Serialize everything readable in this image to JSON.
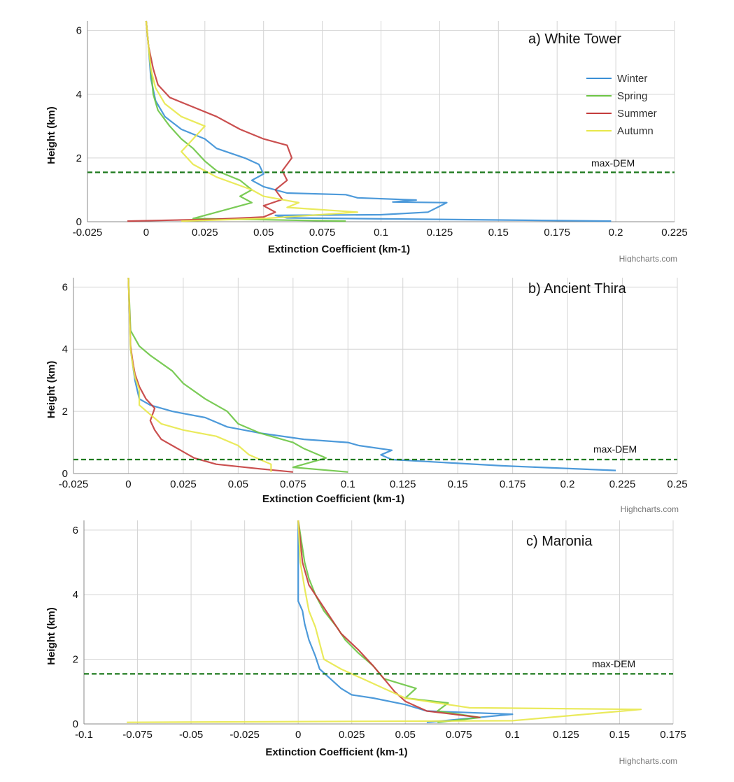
{
  "colors": {
    "Winter": "#3a8fd6",
    "Spring": "#6cc544",
    "Summer": "#c43c3c",
    "Autumn": "#e8e84a",
    "dem": "#1e7a1e",
    "grid": "#d4d4d4"
  },
  "chart_data": [
    {
      "type": "line",
      "title": "a) White Tower",
      "xlabel": "Extinction Coefficient (km-1)",
      "ylabel": "Height (km)",
      "xlim": [
        -0.025,
        0.225
      ],
      "ylim": [
        0,
        6.3
      ],
      "xticks": [
        "-0.025",
        "0",
        "0.025",
        "0.05",
        "0.075",
        "0.1",
        "0.125",
        "0.15",
        "0.175",
        "0.2",
        "0.225"
      ],
      "yticks": [
        "0",
        "2",
        "4",
        "6"
      ],
      "legend": [
        "Winter",
        "Spring",
        "Summer",
        "Autumn"
      ],
      "legend_position": "top-right",
      "reference_line": {
        "label": "max-DEM",
        "y": 1.55
      },
      "credits": "Highcharts.com",
      "series": [
        {
          "name": "Winter",
          "points": [
            [
              0.198,
              0.02
            ],
            [
              0.06,
              0.12
            ],
            [
              0.055,
              0.2
            ],
            [
              0.1,
              0.22
            ],
            [
              0.12,
              0.3
            ],
            [
              0.128,
              0.6
            ],
            [
              0.105,
              0.62
            ],
            [
              0.115,
              0.68
            ],
            [
              0.09,
              0.75
            ],
            [
              0.085,
              0.85
            ],
            [
              0.06,
              0.9
            ],
            [
              0.05,
              1.1
            ],
            [
              0.045,
              1.3
            ],
            [
              0.05,
              1.5
            ],
            [
              0.048,
              1.8
            ],
            [
              0.042,
              2.0
            ],
            [
              0.03,
              2.3
            ],
            [
              0.025,
              2.6
            ],
            [
              0.015,
              2.9
            ],
            [
              0.008,
              3.3
            ],
            [
              0.004,
              3.8
            ],
            [
              0.002,
              4.5
            ],
            [
              0.001,
              5.5
            ],
            [
              0.0,
              6.3
            ]
          ]
        },
        {
          "name": "Spring",
          "points": [
            [
              0.085,
              0.02
            ],
            [
              0.02,
              0.1
            ],
            [
              0.025,
              0.2
            ],
            [
              0.035,
              0.4
            ],
            [
              0.045,
              0.6
            ],
            [
              0.04,
              0.8
            ],
            [
              0.045,
              1.0
            ],
            [
              0.04,
              1.3
            ],
            [
              0.03,
              1.6
            ],
            [
              0.025,
              1.9
            ],
            [
              0.02,
              2.3
            ],
            [
              0.015,
              2.6
            ],
            [
              0.01,
              3.0
            ],
            [
              0.005,
              3.5
            ],
            [
              0.003,
              4.0
            ],
            [
              0.002,
              4.8
            ],
            [
              0.001,
              5.5
            ],
            [
              0.0,
              6.3
            ]
          ]
        },
        {
          "name": "Summer",
          "points": [
            [
              -0.008,
              0.02
            ],
            [
              0.03,
              0.08
            ],
            [
              0.05,
              0.15
            ],
            [
              0.055,
              0.3
            ],
            [
              0.05,
              0.5
            ],
            [
              0.058,
              0.7
            ],
            [
              0.055,
              1.0
            ],
            [
              0.06,
              1.3
            ],
            [
              0.058,
              1.6
            ],
            [
              0.062,
              2.0
            ],
            [
              0.06,
              2.4
            ],
            [
              0.05,
              2.6
            ],
            [
              0.04,
              2.9
            ],
            [
              0.03,
              3.3
            ],
            [
              0.02,
              3.6
            ],
            [
              0.01,
              3.9
            ],
            [
              0.005,
              4.3
            ],
            [
              0.003,
              4.8
            ],
            [
              0.001,
              5.5
            ],
            [
              0.0,
              6.3
            ]
          ]
        },
        {
          "name": "Autumn",
          "points": [
            [
              0.015,
              0.02
            ],
            [
              0.05,
              0.1
            ],
            [
              0.09,
              0.3
            ],
            [
              0.06,
              0.45
            ],
            [
              0.065,
              0.6
            ],
            [
              0.05,
              0.8
            ],
            [
              0.045,
              1.0
            ],
            [
              0.03,
              1.4
            ],
            [
              0.02,
              1.8
            ],
            [
              0.015,
              2.2
            ],
            [
              0.02,
              2.6
            ],
            [
              0.025,
              3.0
            ],
            [
              0.015,
              3.3
            ],
            [
              0.008,
              3.7
            ],
            [
              0.004,
              4.2
            ],
            [
              0.002,
              4.8
            ],
            [
              0.001,
              5.5
            ],
            [
              0.0,
              6.3
            ]
          ]
        }
      ]
    },
    {
      "type": "line",
      "title": "b) Ancient Thira",
      "xlabel": "Extinction Coefficient (km-1)",
      "ylabel": "Height (km)",
      "xlim": [
        -0.025,
        0.25
      ],
      "ylim": [
        0,
        6.3
      ],
      "xticks": [
        "-0.025",
        "0",
        "0.025",
        "0.05",
        "0.075",
        "0.1",
        "0.125",
        "0.15",
        "0.175",
        "0.2",
        "0.225",
        "0.25"
      ],
      "yticks": [
        "0",
        "2",
        "4",
        "6"
      ],
      "reference_line": {
        "label": "max-DEM",
        "y": 0.45
      },
      "credits": "Highcharts.com",
      "series": [
        {
          "name": "Winter",
          "points": [
            [
              0.222,
              0.1
            ],
            [
              0.17,
              0.25
            ],
            [
              0.12,
              0.45
            ],
            [
              0.115,
              0.6
            ],
            [
              0.12,
              0.75
            ],
            [
              0.105,
              0.9
            ],
            [
              0.1,
              1.0
            ],
            [
              0.08,
              1.1
            ],
            [
              0.06,
              1.3
            ],
            [
              0.045,
              1.5
            ],
            [
              0.035,
              1.8
            ],
            [
              0.02,
              2.0
            ],
            [
              0.01,
              2.2
            ],
            [
              0.005,
              2.4
            ],
            [
              0.003,
              3.0
            ],
            [
              0.002,
              3.5
            ],
            [
              0.001,
              4.0
            ],
            [
              0.0,
              6.3
            ]
          ]
        },
        {
          "name": "Spring",
          "points": [
            [
              0.1,
              0.05
            ],
            [
              0.075,
              0.2
            ],
            [
              0.09,
              0.5
            ],
            [
              0.08,
              0.8
            ],
            [
              0.075,
              1.0
            ],
            [
              0.06,
              1.3
            ],
            [
              0.05,
              1.6
            ],
            [
              0.045,
              2.0
            ],
            [
              0.035,
              2.4
            ],
            [
              0.025,
              2.9
            ],
            [
              0.02,
              3.3
            ],
            [
              0.01,
              3.8
            ],
            [
              0.005,
              4.1
            ],
            [
              0.001,
              4.6
            ],
            [
              0.0,
              6.3
            ]
          ]
        },
        {
          "name": "Summer",
          "points": [
            [
              0.075,
              0.05
            ],
            [
              0.06,
              0.15
            ],
            [
              0.04,
              0.3
            ],
            [
              0.03,
              0.5
            ],
            [
              0.025,
              0.7
            ],
            [
              0.02,
              0.9
            ],
            [
              0.015,
              1.1
            ],
            [
              0.012,
              1.4
            ],
            [
              0.01,
              1.7
            ],
            [
              0.012,
              2.1
            ],
            [
              0.008,
              2.4
            ],
            [
              0.005,
              2.8
            ],
            [
              0.003,
              3.2
            ],
            [
              0.002,
              3.6
            ],
            [
              0.001,
              4.1
            ],
            [
              0.0,
              6.3
            ]
          ]
        },
        {
          "name": "Autumn",
          "points": [
            [
              0.065,
              0.05
            ],
            [
              0.065,
              0.3
            ],
            [
              0.055,
              0.6
            ],
            [
              0.05,
              0.9
            ],
            [
              0.04,
              1.2
            ],
            [
              0.025,
              1.4
            ],
            [
              0.015,
              1.6
            ],
            [
              0.01,
              1.9
            ],
            [
              0.005,
              2.2
            ],
            [
              0.005,
              2.7
            ],
            [
              0.003,
              3.1
            ],
            [
              0.002,
              3.5
            ],
            [
              0.001,
              4.0
            ],
            [
              0.0,
              6.3
            ]
          ]
        }
      ]
    },
    {
      "type": "line",
      "title": "c) Maronia",
      "xlabel": "Extinction Coefficient (km-1)",
      "ylabel": "Height (km)",
      "xlim": [
        -0.1,
        0.175
      ],
      "ylim": [
        0,
        6.3
      ],
      "xticks": [
        "-0.1",
        "-0.075",
        "-0.05",
        "-0.025",
        "0",
        "0.025",
        "0.05",
        "0.075",
        "0.1",
        "0.125",
        "0.15",
        "0.175"
      ],
      "yticks": [
        "0",
        "2",
        "4",
        "6"
      ],
      "reference_line": {
        "label": "max-DEM",
        "y": 1.55
      },
      "credits": "Highcharts.com",
      "series": [
        {
          "name": "Winter",
          "points": [
            [
              0.06,
              0.05
            ],
            [
              0.1,
              0.3
            ],
            [
              0.06,
              0.4
            ],
            [
              0.05,
              0.6
            ],
            [
              0.035,
              0.8
            ],
            [
              0.025,
              0.9
            ],
            [
              0.02,
              1.1
            ],
            [
              0.015,
              1.4
            ],
            [
              0.01,
              1.7
            ],
            [
              0.008,
              2.1
            ],
            [
              0.005,
              2.6
            ],
            [
              0.003,
              3.1
            ],
            [
              0.002,
              3.5
            ],
            [
              0.0,
              3.8
            ],
            [
              0.0,
              6.3
            ]
          ]
        },
        {
          "name": "Spring",
          "points": [
            [
              0.065,
              0.05
            ],
            [
              0.085,
              0.2
            ],
            [
              0.065,
              0.4
            ],
            [
              0.07,
              0.65
            ],
            [
              0.05,
              0.8
            ],
            [
              0.055,
              1.1
            ],
            [
              0.04,
              1.4
            ],
            [
              0.035,
              1.8
            ],
            [
              0.028,
              2.2
            ],
            [
              0.022,
              2.6
            ],
            [
              0.018,
              3.0
            ],
            [
              0.012,
              3.5
            ],
            [
              0.008,
              4.0
            ],
            [
              0.005,
              4.5
            ],
            [
              0.003,
              5.0
            ],
            [
              0.0,
              6.3
            ]
          ]
        },
        {
          "name": "Summer",
          "points": [
            [
              0.085,
              0.2
            ],
            [
              0.06,
              0.4
            ],
            [
              0.05,
              0.7
            ],
            [
              0.045,
              1.0
            ],
            [
              0.04,
              1.4
            ],
            [
              0.035,
              1.8
            ],
            [
              0.028,
              2.3
            ],
            [
              0.02,
              2.8
            ],
            [
              0.015,
              3.3
            ],
            [
              0.01,
              3.8
            ],
            [
              0.005,
              4.3
            ],
            [
              0.002,
              5.0
            ],
            [
              0.0,
              6.3
            ]
          ]
        },
        {
          "name": "Autumn",
          "points": [
            [
              -0.08,
              0.05
            ],
            [
              0.1,
              0.1
            ],
            [
              0.16,
              0.45
            ],
            [
              0.08,
              0.5
            ],
            [
              0.05,
              0.8
            ],
            [
              0.04,
              1.1
            ],
            [
              0.03,
              1.4
            ],
            [
              0.02,
              1.7
            ],
            [
              0.012,
              2.0
            ],
            [
              0.01,
              2.5
            ],
            [
              0.008,
              3.0
            ],
            [
              0.005,
              3.5
            ],
            [
              0.003,
              4.2
            ],
            [
              0.001,
              5.0
            ],
            [
              0.0,
              6.3
            ]
          ]
        }
      ]
    }
  ]
}
